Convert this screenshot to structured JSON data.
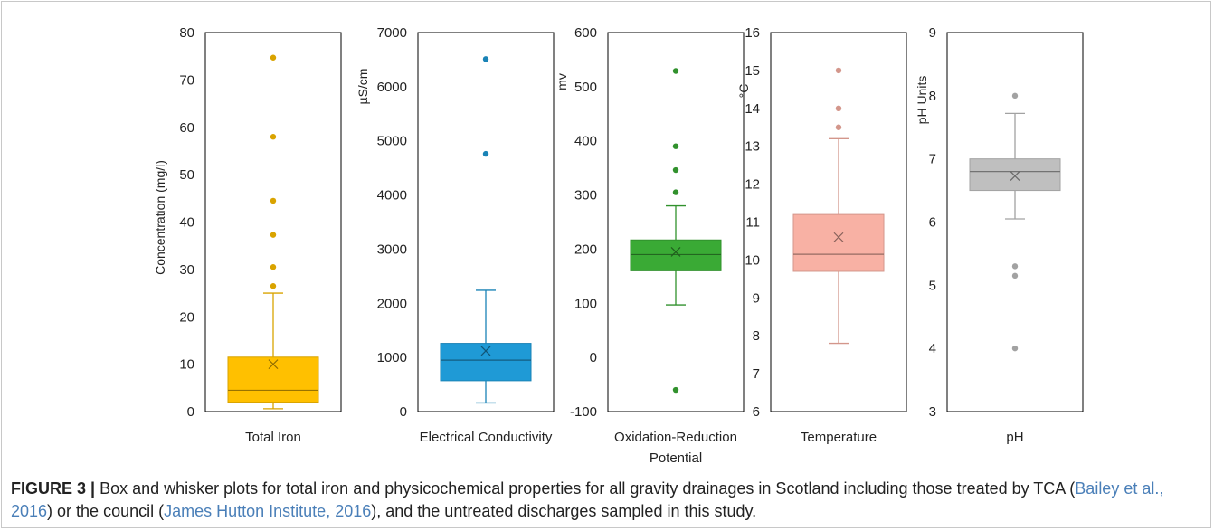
{
  "chart_data": [
    {
      "type": "box",
      "category": "Total Iron",
      "ylabel": "Concentration (mg/l)",
      "ylim": [
        0,
        80
      ],
      "yticks": [
        0,
        10,
        20,
        30,
        40,
        50,
        60,
        70,
        80
      ],
      "color": "#FFC000",
      "stats": {
        "whisker_low": 0.6,
        "q1": 2,
        "median": 4.5,
        "q3": 11.5,
        "whisker_high": 25,
        "mean": 10
      },
      "outliers": [
        26.5,
        30.5,
        37.3,
        44.5,
        58,
        74.7
      ]
    },
    {
      "type": "box",
      "category": "Electrical Conductivity",
      "ylabel": "µS/cm",
      "ylim": [
        0,
        7000
      ],
      "yticks": [
        0,
        1000,
        2000,
        3000,
        4000,
        5000,
        6000,
        7000
      ],
      "color": "#1F9AD6",
      "stats": {
        "whisker_low": 160,
        "q1": 570,
        "median": 950,
        "q3": 1260,
        "whisker_high": 2240,
        "mean": 1120
      },
      "outliers": [
        4760,
        6510
      ]
    },
    {
      "type": "box",
      "category": "Oxidation-Reduction Potential",
      "category_lines": [
        "Oxidation-Reduction",
        "Potential"
      ],
      "ylabel": "mv",
      "ylim": [
        -100,
        600
      ],
      "yticks": [
        -100,
        0,
        100,
        200,
        300,
        400,
        500,
        600
      ],
      "color": "#3AAA35",
      "stats": {
        "whisker_low": 97,
        "q1": 160,
        "median": 190,
        "q3": 217,
        "whisker_high": 280,
        "mean": 195
      },
      "outliers": [
        -60,
        305,
        346,
        390,
        529
      ]
    },
    {
      "type": "box",
      "category": "Temperature",
      "ylabel": "°C",
      "ylim": [
        6,
        16
      ],
      "yticks": [
        6,
        7,
        8,
        9,
        10,
        11,
        12,
        13,
        14,
        15,
        16
      ],
      "color": "#F8B1A4",
      "stats": {
        "whisker_low": 7.8,
        "q1": 9.7,
        "median": 10.15,
        "q3": 11.2,
        "whisker_high": 13.2,
        "mean": 10.6
      },
      "outliers": [
        13.5,
        14,
        15
      ]
    },
    {
      "type": "box",
      "category": "pH",
      "ylabel": "pH Units",
      "ylim": [
        3,
        9
      ],
      "yticks": [
        3,
        4,
        5,
        6,
        7,
        8,
        9
      ],
      "color": "#BFBFBF",
      "stats": {
        "whisker_low": 6.05,
        "q1": 6.5,
        "median": 6.8,
        "q3": 7.0,
        "whisker_high": 7.72,
        "mean": 6.73
      },
      "outliers": [
        4,
        5.15,
        5.3,
        8
      ]
    }
  ],
  "caption": {
    "label": "FIGURE 3 |",
    "text_1": " Box and whisker plots for total iron and physicochemical properties for all gravity drainages in Scotland including those treated by TCA (",
    "ref_1": "Bailey et al., 2016",
    "text_2": ") or the council (",
    "ref_2": "James Hutton Institute, 2016",
    "text_3": "), and the untreated discharges sampled in this study."
  }
}
